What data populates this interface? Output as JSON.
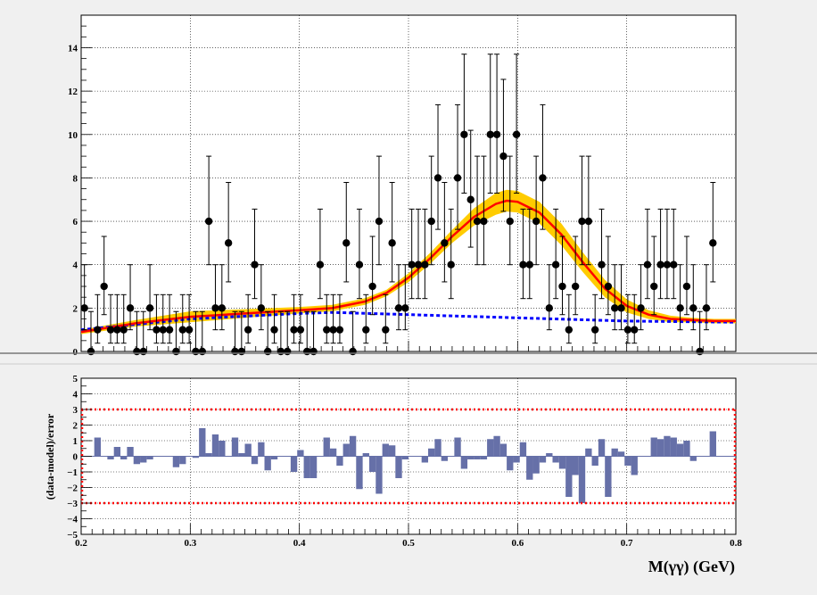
{
  "chart_data": [
    {
      "type": "scatter",
      "panel": "fit",
      "xlim": [
        0.2,
        0.8
      ],
      "ylim": [
        0,
        15.5
      ],
      "y_ticks": [
        0,
        2,
        4,
        6,
        8,
        10,
        12,
        14
      ],
      "y_tick_labels": [
        "0",
        "2",
        "4",
        "6",
        "8",
        "10",
        "12",
        "14"
      ],
      "grid": true,
      "bin_width": 0.006,
      "data_points": [
        2,
        0,
        1,
        3,
        1,
        1,
        1,
        2,
        0,
        0,
        2,
        1,
        1,
        1,
        0,
        1,
        1,
        0,
        0,
        6,
        2,
        2,
        5,
        0,
        0,
        1,
        4,
        2,
        0,
        1,
        0,
        0,
        1,
        1,
        0,
        0,
        4,
        1,
        1,
        1,
        5,
        0,
        4,
        1,
        3,
        6,
        1,
        5,
        2,
        2,
        4,
        4,
        4,
        6,
        8,
        5,
        4,
        8,
        10,
        7,
        6,
        6,
        10,
        10,
        9,
        6,
        10,
        4,
        4,
        6,
        8,
        2,
        4,
        3,
        1,
        3,
        6,
        6,
        1,
        4,
        3,
        2,
        2,
        1,
        1,
        2,
        4,
        3,
        4,
        4,
        4,
        2,
        3,
        2,
        0,
        2,
        5
      ],
      "total_fit": {
        "x": [
          0.2,
          0.25,
          0.3,
          0.35,
          0.4,
          0.43,
          0.46,
          0.48,
          0.5,
          0.52,
          0.54,
          0.56,
          0.58,
          0.59,
          0.6,
          0.62,
          0.64,
          0.66,
          0.68,
          0.7,
          0.72,
          0.74,
          0.76,
          0.78,
          0.8
        ],
        "y": [
          0.9,
          1.3,
          1.6,
          1.75,
          1.9,
          2.0,
          2.3,
          2.7,
          3.4,
          4.3,
          5.3,
          6.2,
          6.8,
          6.95,
          6.9,
          6.4,
          5.4,
          4.1,
          2.9,
          2.1,
          1.7,
          1.5,
          1.45,
          1.4,
          1.4
        ]
      },
      "band_halfwidth": [
        0.1,
        0.15,
        0.25,
        0.2,
        0.15,
        0.15,
        0.15,
        0.15,
        0.2,
        0.25,
        0.3,
        0.4,
        0.5,
        0.5,
        0.5,
        0.5,
        0.5,
        0.45,
        0.4,
        0.3,
        0.2,
        0.15,
        0.1,
        0.1,
        0.1
      ],
      "background_fit": {
        "x": [
          0.2,
          0.3,
          0.4,
          0.43,
          0.5,
          0.6,
          0.7,
          0.8
        ],
        "y": [
          1.0,
          1.5,
          1.75,
          1.8,
          1.7,
          1.55,
          1.4,
          1.35
        ]
      },
      "colors": {
        "data": "#000000",
        "total_fit": "#ff0000",
        "band": "#ffcc00",
        "background_fit": "#0000ff",
        "frame_bg": "#ffffff"
      }
    },
    {
      "type": "bar",
      "panel": "pull",
      "xlim": [
        0.2,
        0.8
      ],
      "ylim": [
        -5,
        5
      ],
      "xlabel": "M(γγ) (GeV)",
      "ylabel": "(data-model)/error",
      "x_ticks": [
        0.2,
        0.3,
        0.4,
        0.5,
        0.6,
        0.7,
        0.8
      ],
      "x_tick_labels": [
        "0.2",
        "0.3",
        "0.4",
        "0.5",
        "0.6",
        "0.7",
        "0.8"
      ],
      "y_ticks": [
        -5,
        -4,
        -3,
        -2,
        -1,
        0,
        1,
        2,
        3,
        4,
        5
      ],
      "y_tick_labels": [
        "−5",
        "−4",
        "−3",
        "−2",
        "−1",
        "0",
        "1",
        "2",
        "3",
        "4",
        "5"
      ],
      "reference_lines": [
        3,
        -3
      ],
      "bin_width": 0.006,
      "values": [
        0.0,
        0.0,
        1.2,
        0.0,
        -0.2,
        0.6,
        -0.2,
        0.6,
        -0.5,
        -0.4,
        -0.2,
        0.0,
        0.0,
        0.0,
        -0.7,
        -0.5,
        0.0,
        -0.1,
        1.8,
        0.2,
        1.4,
        1.0,
        0.0,
        1.2,
        0.2,
        0.8,
        -0.5,
        0.9,
        -0.9,
        -0.2,
        0.0,
        0.0,
        -1.0,
        0.4,
        -1.4,
        -1.4,
        0.0,
        1.2,
        0.5,
        -0.6,
        0.8,
        1.3,
        -2.1,
        0.2,
        -1.0,
        -2.4,
        0.8,
        0.7,
        -1.4,
        -0.2,
        0.0,
        0.0,
        -0.4,
        0.5,
        1.1,
        -0.3,
        0.0,
        1.2,
        -0.8,
        -0.2,
        -0.2,
        -0.2,
        1.1,
        1.3,
        0.8,
        -0.9,
        -0.4,
        0.9,
        -1.5,
        -1.1,
        -0.4,
        0.2,
        -0.4,
        -0.8,
        -2.6,
        -1.2,
        -3.0,
        0.5,
        -0.6,
        1.1,
        -2.6,
        0.5,
        0.3,
        -0.6,
        -1.2,
        0.0,
        0.0,
        1.2,
        1.1,
        1.3,
        1.2,
        0.8,
        1.0,
        -0.3,
        0.0,
        0.0,
        1.6
      ],
      "colors": {
        "bars": "#6670a8",
        "reference_lines": "#ff0000",
        "frame_bg": "#ffffff"
      }
    }
  ]
}
